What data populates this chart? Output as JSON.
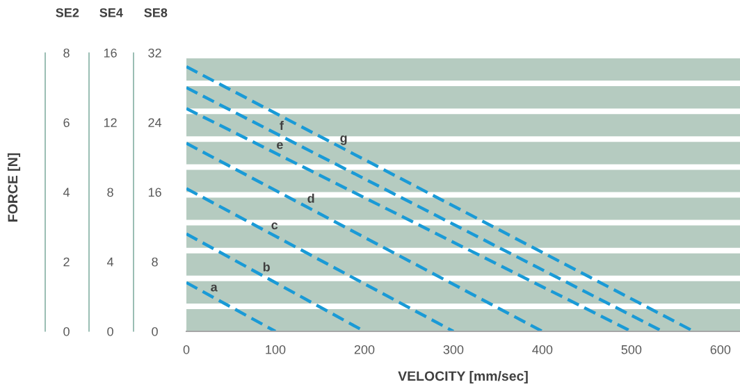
{
  "chart_data": {
    "type": "line",
    "xlabel": "VELOCITY [mm/sec]",
    "ylabel": "FORCE [N]",
    "xlim": [
      0,
      622
    ],
    "xticks": [
      0,
      100,
      200,
      300,
      400,
      500,
      600
    ],
    "ylim": [
      0,
      8
    ],
    "yticks": [
      0,
      2,
      4,
      6,
      8
    ],
    "y2lim": [
      0,
      16
    ],
    "y2ticks": [
      0,
      4,
      8,
      12,
      16
    ],
    "y3lim": [
      0,
      32
    ],
    "y3ticks": [
      0,
      8,
      16,
      24,
      32
    ],
    "line_style": "dashed",
    "grid": false,
    "series": [
      {
        "name": "a",
        "color": "#1a9ad6",
        "x": [
          0,
          100
        ],
        "values": [
          1.4,
          0
        ]
      },
      {
        "name": "b",
        "color": "#1a9ad6",
        "x": [
          0,
          200
        ],
        "values": [
          2.8,
          0
        ]
      },
      {
        "name": "c",
        "color": "#1a9ad6",
        "x": [
          0,
          300
        ],
        "values": [
          4.1,
          0
        ]
      },
      {
        "name": "d",
        "color": "#1a9ad6",
        "x": [
          0,
          400
        ],
        "values": [
          5.4,
          0
        ]
      },
      {
        "name": "e",
        "color": "#1a9ad6",
        "x": [
          0,
          500
        ],
        "values": [
          6.4,
          0
        ]
      },
      {
        "name": "f",
        "color": "#1a9ad6",
        "x": [
          0,
          535
        ],
        "values": [
          7.0,
          0
        ]
      },
      {
        "name": "g",
        "color": "#1a9ad6",
        "x": [
          0,
          570
        ],
        "values": [
          7.6,
          0
        ]
      }
    ],
    "bands": [
      {
        "axis": "y",
        "from": 0,
        "to": 0.64,
        "color": "#b5cbc0"
      },
      {
        "axis": "y",
        "from": 0.8,
        "to": 1.44,
        "color": "#b5cbc0"
      },
      {
        "axis": "y",
        "from": 1.6,
        "to": 2.24,
        "color": "#b5cbc0"
      },
      {
        "axis": "y",
        "from": 2.4,
        "to": 3.04,
        "color": "#b5cbc0"
      },
      {
        "axis": "y",
        "from": 3.2,
        "to": 3.84,
        "color": "#b5cbc0"
      },
      {
        "axis": "y",
        "from": 4.0,
        "to": 4.64,
        "color": "#b5cbc0"
      },
      {
        "axis": "y",
        "from": 4.8,
        "to": 5.44,
        "color": "#b5cbc0"
      },
      {
        "axis": "y",
        "from": 5.6,
        "to": 6.24,
        "color": "#b5cbc0"
      },
      {
        "axis": "y",
        "from": 6.4,
        "to": 7.04,
        "color": "#b5cbc0"
      },
      {
        "axis": "y",
        "from": 7.2,
        "to": 7.84,
        "color": "#b5cbc0"
      }
    ],
    "annotations": [
      "SE2",
      "SE4",
      "SE8"
    ]
  }
}
